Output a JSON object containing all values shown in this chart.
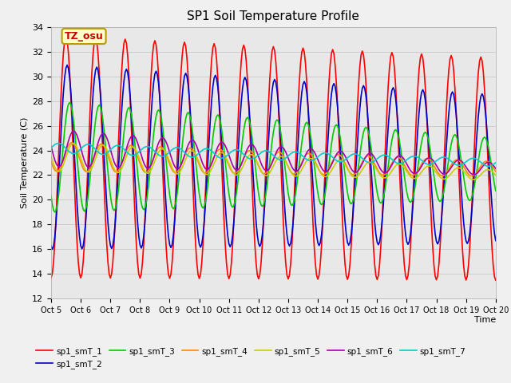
{
  "title": "SP1 Soil Temperature Profile",
  "xlabel": "Time",
  "ylabel": "Soil Temperature (C)",
  "ylim": [
    12,
    34
  ],
  "xlim": [
    0,
    360
  ],
  "annotation_text": "TZ_osu",
  "annotation_color": "#cc0000",
  "annotation_bg": "#ffffcc",
  "annotation_border": "#bb9900",
  "series_colors": [
    "#ff0000",
    "#0000cc",
    "#00cc00",
    "#ff8800",
    "#cccc00",
    "#aa00aa",
    "#00cccc"
  ],
  "series_labels": [
    "sp1_smT_1",
    "sp1_smT_2",
    "sp1_smT_3",
    "sp1_smT_4",
    "sp1_smT_5",
    "sp1_smT_6",
    "sp1_smT_7"
  ],
  "tick_labels": [
    "Oct 5",
    "Oct 6",
    "Oct 7",
    "Oct 8",
    "Oct 9",
    "Oct 10",
    "Oct 11",
    "Oct 12",
    "Oct 13",
    "Oct 14",
    "Oct 15",
    "Oct 16",
    "Oct 17",
    "Oct 18",
    "Oct 19",
    "Oct 20"
  ],
  "tick_positions": [
    0,
    24,
    48,
    72,
    96,
    120,
    144,
    168,
    192,
    216,
    240,
    264,
    288,
    312,
    336,
    360
  ],
  "grid_color": "#cccccc",
  "fig_bg": "#f0f0f0",
  "plot_bg": "#e8e8e8",
  "n_hours": 361,
  "mean_start": [
    23.5,
    23.5,
    23.5,
    23.5,
    23.5,
    24.2,
    24.2
  ],
  "mean_end": [
    22.5,
    22.5,
    22.5,
    22.5,
    22.0,
    22.5,
    23.0
  ],
  "amp_start": [
    9.8,
    7.5,
    4.5,
    1.2,
    1.2,
    1.5,
    0.4
  ],
  "amp_end": [
    9.0,
    6.0,
    2.5,
    0.6,
    0.4,
    0.5,
    0.3
  ],
  "phase_deg": [
    270,
    255,
    225,
    200,
    180,
    175,
    0
  ]
}
